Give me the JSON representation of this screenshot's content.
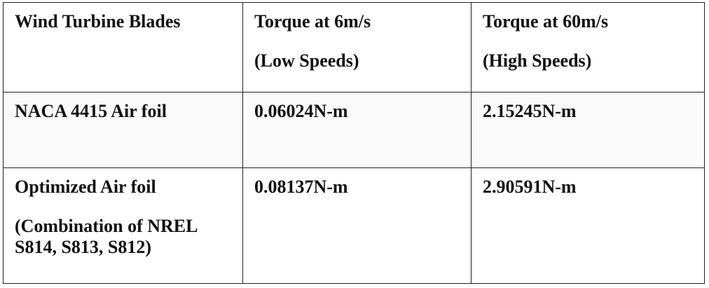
{
  "table": {
    "header": {
      "col1": [
        "Wind Turbine Blades"
      ],
      "col2": [
        "Torque at 6m/s",
        "(Low Speeds)"
      ],
      "col3": [
        "Torque at 60m/s",
        "(High Speeds)"
      ]
    },
    "rows": [
      {
        "blade": [
          "NACA 4415 Air foil"
        ],
        "torque_low": "0.06024N-m",
        "torque_high": "2.15245N-m"
      },
      {
        "blade": [
          "Optimized Air foil",
          "(Combination of NREL",
          "S814, S813, S812)"
        ],
        "torque_low": "0.08137N-m",
        "torque_high": "2.90591N-m"
      }
    ]
  }
}
